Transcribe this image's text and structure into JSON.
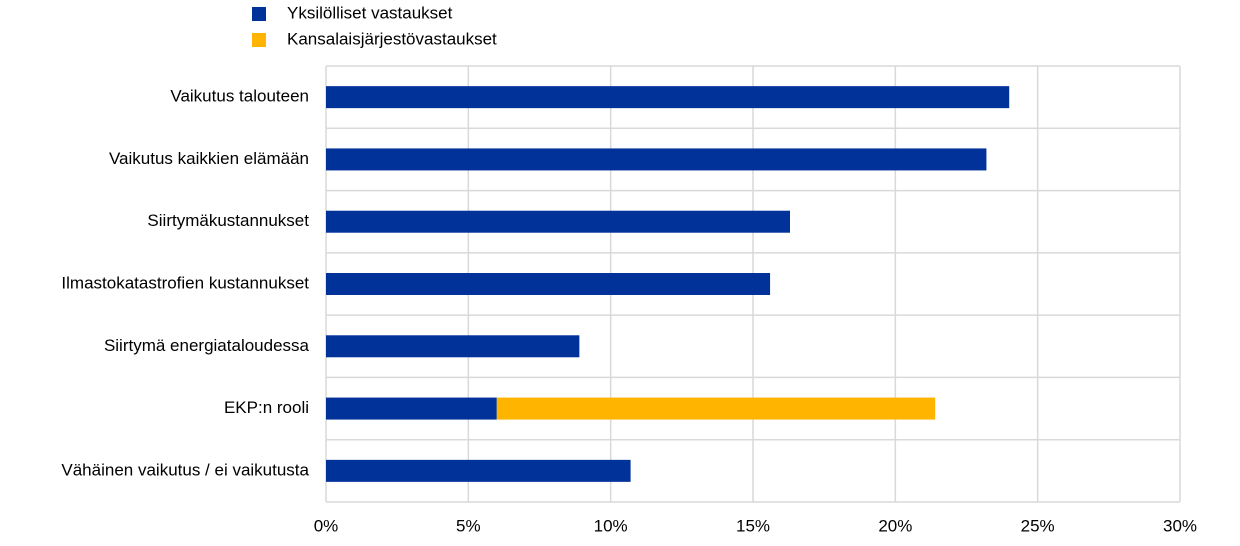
{
  "chart_data": {
    "type": "stacked-bar-horizontal",
    "categories": [
      "Vaikutus talouteen",
      "Vaikutus kaikkien elämään",
      "Siirtymäkustannukset",
      "Ilmastokatastrofien kustannukset",
      "Siirtymä energiataloudessa",
      "EKP:n rooli",
      "Vähäinen vaikutus / ei vaikutusta"
    ],
    "series": [
      {
        "name": "Yksilölliset vastaukset",
        "color": "#003299",
        "values": [
          24.0,
          23.2,
          16.3,
          15.6,
          8.9,
          6.0,
          10.7
        ]
      },
      {
        "name": "Kansalaisjärjestövastaukset",
        "color": "#ffb400",
        "values": [
          null,
          null,
          null,
          null,
          null,
          15.4,
          null
        ]
      }
    ],
    "xlim": [
      0,
      30
    ],
    "xticks": [
      {
        "value": 0,
        "label": "0%"
      },
      {
        "value": 5,
        "label": "5%"
      },
      {
        "value": 10,
        "label": "10%"
      },
      {
        "value": 15,
        "label": "15%"
      },
      {
        "value": 20,
        "label": "20%"
      },
      {
        "value": 25,
        "label": "25%"
      },
      {
        "value": 30,
        "label": "30%"
      }
    ],
    "grid": true
  }
}
